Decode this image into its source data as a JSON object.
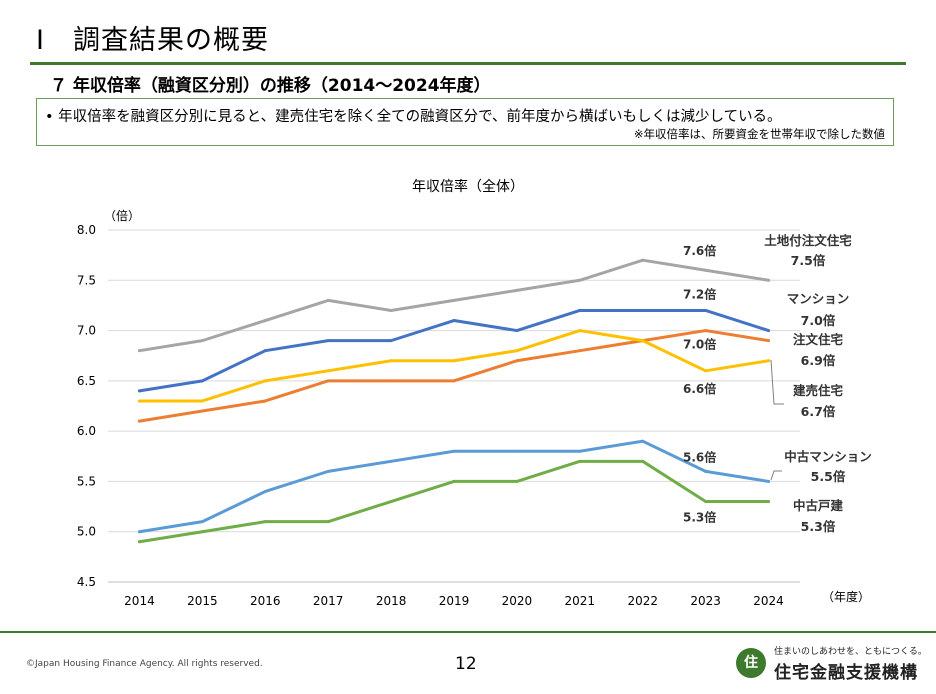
{
  "page": {
    "title": "Ⅰ　調査結果の概要",
    "subtitle": "７ 年収倍率（融資区分別）の推移（2014～2024年度）",
    "note_main": "• 年収倍率を融資区分別に見ると、建売住宅を除く全ての融資区分で、前年度から横ばいもしくは減少している。",
    "note_sub": "※年収倍率は、所要資金を世帯年収で除した数値",
    "copyright": "©Japan Housing Finance Agency. All rights reserved.",
    "page_number": "12",
    "logo_tagline": "住まいのしあわせを、ともにつくる。",
    "logo_name": "住宅金融支援機構",
    "logo_icon": "jhf-logo-icon"
  },
  "chart_data": {
    "type": "line",
    "title": "年収倍率（全体）",
    "ylabel": "（倍）",
    "xlabel": "（年度）",
    "ylim": [
      4.5,
      8.0
    ],
    "yticks": [
      "8.0",
      "7.5",
      "7.0",
      "6.5",
      "6.0",
      "5.5",
      "5.0",
      "4.5"
    ],
    "categories": [
      "2014",
      "2015",
      "2016",
      "2017",
      "2018",
      "2019",
      "2020",
      "2021",
      "2022",
      "2023",
      "2024"
    ],
    "grid": true,
    "series": [
      {
        "name": "土地付注文住宅",
        "end_label": "7.5倍",
        "color": "#a5a5a5",
        "values": [
          6.8,
          6.9,
          7.1,
          7.3,
          7.2,
          7.3,
          7.4,
          7.5,
          7.7,
          7.6,
          7.5
        ]
      },
      {
        "name": "マンション",
        "end_label": "7.0倍",
        "color": "#4472c4",
        "values": [
          6.4,
          6.5,
          6.8,
          6.9,
          6.9,
          7.1,
          7.0,
          7.2,
          7.2,
          7.2,
          7.0
        ]
      },
      {
        "name": "注文住宅",
        "end_label": "6.9倍",
        "color": "#ed7d31",
        "values": [
          6.1,
          6.2,
          6.3,
          6.5,
          6.5,
          6.5,
          6.7,
          6.8,
          6.9,
          7.0,
          6.9
        ]
      },
      {
        "name": "建売住宅",
        "end_label": "6.7倍",
        "color": "#ffc000",
        "values": [
          6.3,
          6.3,
          6.5,
          6.6,
          6.7,
          6.7,
          6.8,
          7.0,
          6.9,
          6.6,
          6.7
        ]
      },
      {
        "name": "中古マンション",
        "end_label": "5.5倍",
        "color": "#5b9bd5",
        "values": [
          5.0,
          5.1,
          5.4,
          5.6,
          5.7,
          5.8,
          5.8,
          5.8,
          5.9,
          5.6,
          5.5
        ]
      },
      {
        "name": "中古戸建",
        "end_label": "5.3倍",
        "color": "#70ad47",
        "values": [
          4.9,
          5.0,
          5.1,
          5.1,
          5.3,
          5.5,
          5.5,
          5.7,
          5.7,
          5.3,
          5.3
        ]
      }
    ],
    "annotations": [
      {
        "text": "7.6倍",
        "category": "2023",
        "series": "土地付注文住宅"
      },
      {
        "text": "7.2倍",
        "category": "2023",
        "series": "マンション"
      },
      {
        "text": "7.0倍",
        "category": "2023",
        "series": "注文住宅"
      },
      {
        "text": "6.6倍",
        "category": "2023",
        "series": "建売住宅"
      },
      {
        "text": "5.6倍",
        "category": "2023",
        "series": "中古マンション"
      },
      {
        "text": "5.3倍",
        "category": "2023",
        "series": "中古戸建"
      }
    ]
  }
}
